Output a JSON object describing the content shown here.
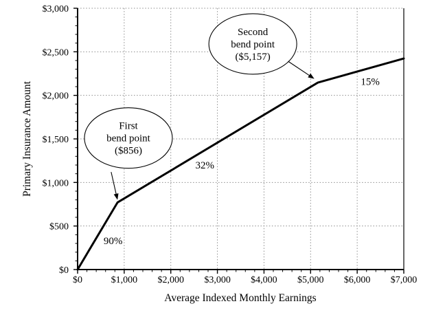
{
  "chart_data": {
    "type": "line",
    "title": "",
    "xlabel": "Average Indexed Monthly Earnings",
    "ylabel": "Primary Insurance Amount",
    "xlim": [
      0,
      7000
    ],
    "ylim": [
      0,
      3000
    ],
    "x_major_step": 1000,
    "x_minor_step": 200,
    "y_major_step": 500,
    "y_minor_step": 100,
    "x_tick_labels": [
      "$0",
      "$1,000",
      "$2,000",
      "$3,000",
      "$4,000",
      "$5,000",
      "$6,000",
      "$7,000"
    ],
    "y_tick_labels": [
      "$0",
      "$500",
      "$1,000",
      "$1,500",
      "$2,000",
      "$2,500",
      "$3,000"
    ],
    "grid": {
      "style": "dotted",
      "color": "#8c8c8c",
      "vertical_majors": true,
      "horizontal_majors": true
    },
    "legend": "none",
    "series": [
      {
        "name": "Primary Insurance Amount",
        "color": "#000000",
        "stroke_width": 3,
        "points": [
          [
            0,
            0
          ],
          [
            856,
            770
          ],
          [
            5157,
            2147
          ],
          [
            7000,
            2423
          ]
        ]
      }
    ],
    "segment_labels": [
      {
        "text": "90%",
        "x": 760,
        "y": 330
      },
      {
        "text": "32%",
        "x": 2730,
        "y": 1200
      },
      {
        "text": "15%",
        "x": 6280,
        "y": 2160
      }
    ],
    "annotations": [
      {
        "name": "first-bend-point",
        "lines": [
          "First",
          "bend point",
          "($856)"
        ],
        "center": [
          1090,
          1510
        ],
        "arrow_from": [
          720,
          1120
        ],
        "arrow_to": [
          856,
          800
        ]
      },
      {
        "name": "second-bend-point",
        "lines": [
          "Second",
          "bend point",
          "($5,157)"
        ],
        "center": [
          3760,
          2590
        ],
        "arrow_from": [
          4520,
          2390
        ],
        "arrow_to": [
          5080,
          2190
        ]
      }
    ]
  },
  "colors": {
    "background": "#ffffff",
    "line": "#000000",
    "grid": "#8c8c8c",
    "axis": "#000000",
    "text": "#000000"
  }
}
